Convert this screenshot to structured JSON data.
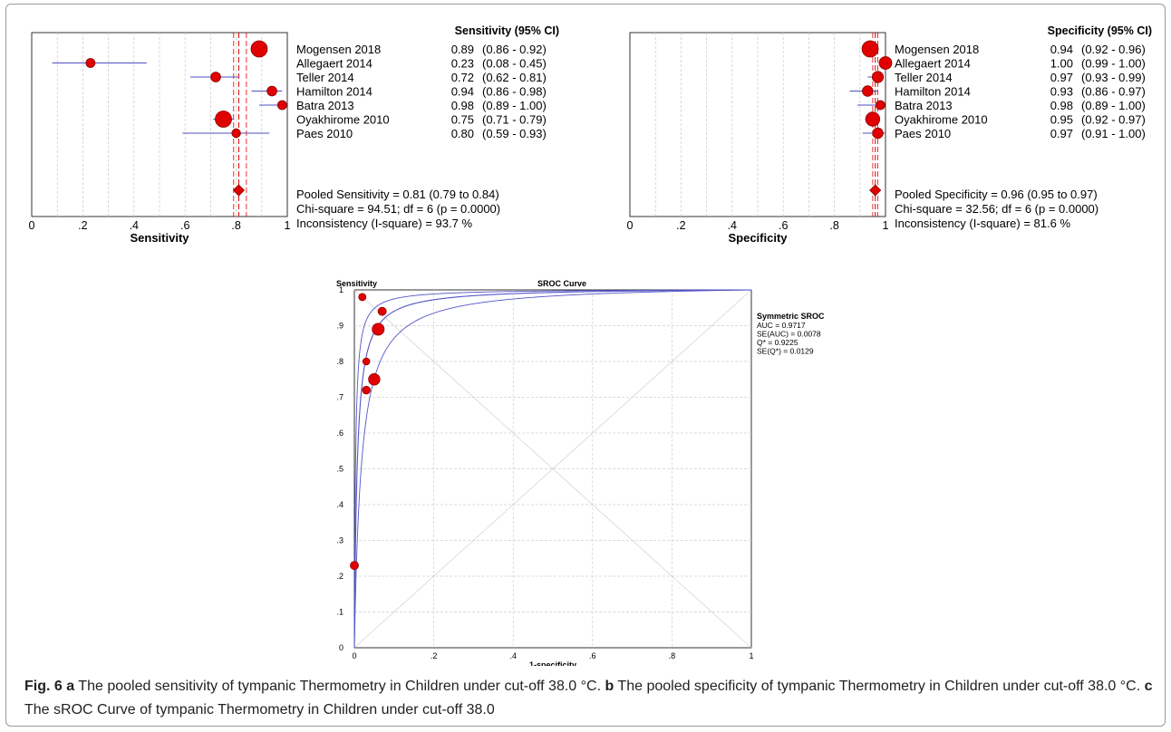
{
  "caption": {
    "lead": "Fig. 6",
    "parts": [
      {
        "letter": "a",
        "text": " The pooled sensitivity of tympanic Thermometry in Children under cut-off 38.0 °C. "
      },
      {
        "letter": "b",
        "text": " The pooled specificity of tympanic Thermometry in Children under cut-off 38.0 °C. "
      },
      {
        "letter": "c",
        "text": " The sROC Curve of tympanic Thermometry in Children under cut-off 38.0"
      }
    ]
  },
  "chart_data": [
    {
      "type": "forest",
      "header": "Sensitivity (95% CI)",
      "xlabel": "Sensitivity",
      "xlim": [
        0,
        1
      ],
      "ticks": [
        "0",
        ".2",
        ".4",
        ".6",
        ".8",
        "1"
      ],
      "tick_values": [
        0,
        0.2,
        0.4,
        0.6,
        0.8,
        1
      ],
      "pooled": {
        "value": 0.81,
        "low": 0.79,
        "high": 0.84
      },
      "studies": [
        {
          "name": "Mogensen 2018",
          "value": 0.89,
          "ci_text": "(0.86 - 0.92)",
          "low": 0.86,
          "high": 0.92,
          "weight": 3
        },
        {
          "name": "Allegaert 2014",
          "value": 0.23,
          "ci_text": "(0.08 - 0.45)",
          "low": 0.08,
          "high": 0.45,
          "weight": 1
        },
        {
          "name": "Teller 2014",
          "value": 0.72,
          "ci_text": "(0.62 - 0.81)",
          "low": 0.62,
          "high": 0.81,
          "weight": 1.2
        },
        {
          "name": "Hamilton 2014",
          "value": 0.94,
          "ci_text": "(0.86 - 0.98)",
          "low": 0.86,
          "high": 0.98,
          "weight": 1.2
        },
        {
          "name": "Batra 2013",
          "value": 0.98,
          "ci_text": "(0.89 - 1.00)",
          "low": 0.89,
          "high": 1.0,
          "weight": 1
        },
        {
          "name": "Oyakhirome 2010",
          "value": 0.75,
          "ci_text": "(0.71 - 0.79)",
          "low": 0.71,
          "high": 0.79,
          "weight": 3
        },
        {
          "name": "Paes 2010",
          "value": 0.8,
          "ci_text": "(0.59 - 0.93)",
          "low": 0.59,
          "high": 0.93,
          "weight": 0.9
        }
      ],
      "stats": [
        "Pooled Sensitivity = 0.81 (0.79 to 0.84)",
        "Chi-square = 94.51; df =  6 (p = 0.0000)",
        "Inconsistency (I-square) = 93.7 %"
      ]
    },
    {
      "type": "forest",
      "header": "Specificity (95% CI)",
      "xlabel": "Specificity",
      "xlim": [
        0,
        1
      ],
      "ticks": [
        "0",
        ".2",
        ".4",
        ".6",
        ".8",
        "1"
      ],
      "tick_values": [
        0,
        0.2,
        0.4,
        0.6,
        0.8,
        1
      ],
      "pooled": {
        "value": 0.96,
        "low": 0.95,
        "high": 0.97
      },
      "studies": [
        {
          "name": "Mogensen 2018",
          "value": 0.94,
          "ci_text": "(0.92 - 0.96)",
          "low": 0.92,
          "high": 0.96,
          "weight": 3
        },
        {
          "name": "Allegaert 2014",
          "value": 1.0,
          "ci_text": "(0.99 - 1.00)",
          "low": 0.99,
          "high": 1.0,
          "weight": 2
        },
        {
          "name": "Teller 2014",
          "value": 0.97,
          "ci_text": "(0.93 - 0.99)",
          "low": 0.93,
          "high": 0.99,
          "weight": 1.6
        },
        {
          "name": "Hamilton 2014",
          "value": 0.93,
          "ci_text": "(0.86 - 0.97)",
          "low": 0.86,
          "high": 0.97,
          "weight": 1.4
        },
        {
          "name": "Batra 2013",
          "value": 0.98,
          "ci_text": "(0.89 - 1.00)",
          "low": 0.89,
          "high": 1.0,
          "weight": 1
        },
        {
          "name": "Oyakhirome 2010",
          "value": 0.95,
          "ci_text": "(0.92 - 0.97)",
          "low": 0.92,
          "high": 0.97,
          "weight": 2.4
        },
        {
          "name": "Paes 2010",
          "value": 0.97,
          "ci_text": "(0.91 - 1.00)",
          "low": 0.91,
          "high": 1.0,
          "weight": 1.4
        }
      ],
      "stats": [
        "Pooled Specificity = 0.96 (0.95 to 0.97)",
        "Chi-square = 32.56; df =  6 (p = 0.0000)",
        "Inconsistency (I-square) = 81.6 %"
      ]
    },
    {
      "type": "scatter",
      "title": "SROC Curve",
      "ylabel": "Sensitivity",
      "xlabel": "1-specificity",
      "xlim": [
        0,
        1
      ],
      "ylim": [
        0,
        1
      ],
      "xticks": [
        "0",
        ".2",
        ".4",
        ".6",
        ".8",
        "1"
      ],
      "xtick_values": [
        0,
        0.2,
        0.4,
        0.6,
        0.8,
        1
      ],
      "yticks": [
        "0",
        ".1",
        ".2",
        ".3",
        ".4",
        ".5",
        ".6",
        ".7",
        ".8",
        ".9",
        "1"
      ],
      "ytick_values": [
        0,
        0.1,
        0.2,
        0.3,
        0.4,
        0.5,
        0.6,
        0.7,
        0.8,
        0.9,
        1
      ],
      "points": [
        {
          "x": 0.06,
          "y": 0.89,
          "weight": 2.6
        },
        {
          "x": 0.0,
          "y": 0.23,
          "weight": 1.3
        },
        {
          "x": 0.03,
          "y": 0.72,
          "weight": 1.2
        },
        {
          "x": 0.07,
          "y": 0.94,
          "weight": 1.3
        },
        {
          "x": 0.02,
          "y": 0.98,
          "weight": 1
        },
        {
          "x": 0.05,
          "y": 0.75,
          "weight": 2.4
        },
        {
          "x": 0.03,
          "y": 0.8,
          "weight": 0.9
        }
      ],
      "legend_title": "Symmetric SROC",
      "legend": [
        "AUC = 0.9717",
        "SE(AUC) = 0.0078",
        "Q* = 0.9225",
        "SE(Q*) = 0.0129"
      ],
      "colors": {
        "points": "#e00000",
        "curve": "#5555c8",
        "ci": "#5050c0",
        "pooled_line": "#e00000",
        "grid": "#cfcfcf"
      }
    }
  ]
}
